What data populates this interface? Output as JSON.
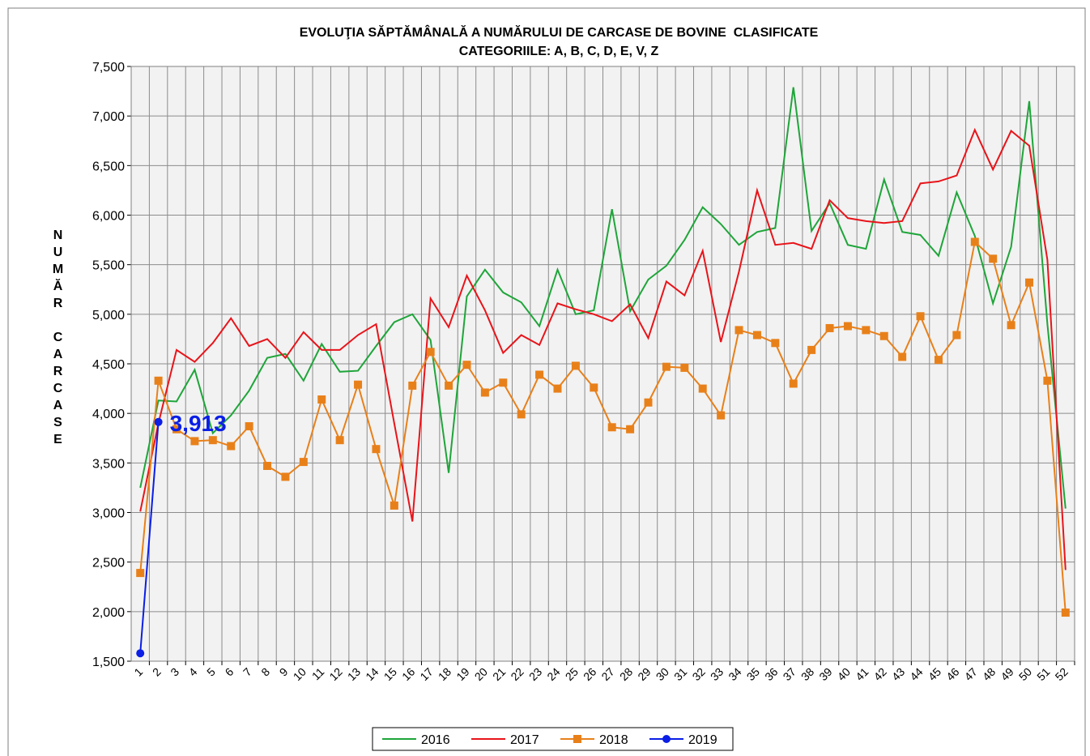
{
  "chart_data": {
    "type": "line",
    "title": "EVOLUŢIA SĂPTĂMÂNALĂ A NUMĂRULUI DE CARCASE DE BOVINE  CLASIFICATE",
    "subtitle": "CATEGORIILE: A, B, C, D, E, V, Z",
    "y_label": "NUMĂR CARCASE",
    "categories": [
      "1",
      "2",
      "3",
      "4",
      "5",
      "6",
      "7",
      "8",
      "9",
      "10",
      "11",
      "12",
      "13",
      "14",
      "15",
      "16",
      "17",
      "18",
      "19",
      "20",
      "21",
      "22",
      "23",
      "24",
      "25",
      "26",
      "27",
      "28",
      "29",
      "30",
      "31",
      "32",
      "33",
      "34",
      "35",
      "36",
      "37",
      "38",
      "39",
      "40",
      "41",
      "42",
      "43",
      "44",
      "45",
      "46",
      "47",
      "48",
      "49",
      "50",
      "51",
      "52"
    ],
    "series": [
      {
        "name": "2016",
        "color": "#1fa53a",
        "marker": "none",
        "values": [
          3250,
          4130,
          4120,
          4440,
          3800,
          3980,
          4230,
          4560,
          4600,
          4330,
          4700,
          4420,
          4430,
          4680,
          4920,
          5000,
          4740,
          3400,
          5180,
          5450,
          5220,
          5120,
          4880,
          5450,
          5000,
          5040,
          6060,
          5030,
          5350,
          5490,
          5750,
          6080,
          5910,
          5700,
          5830,
          5870,
          7290,
          5840,
          6120,
          5700,
          5660,
          6360,
          5830,
          5800,
          5590,
          6230,
          5790,
          5110,
          5680,
          7150,
          4900,
          3040
        ]
      },
      {
        "name": "2017",
        "color": "#e8141a",
        "marker": "none",
        "values": [
          3010,
          3900,
          4640,
          4520,
          4710,
          4960,
          4680,
          4750,
          4560,
          4820,
          4640,
          4640,
          4790,
          4900,
          3900,
          2910,
          5160,
          4870,
          5390,
          5040,
          4610,
          4790,
          4690,
          5110,
          5050,
          5000,
          4930,
          5100,
          4760,
          5330,
          5190,
          5640,
          4720,
          5430,
          6250,
          5700,
          5720,
          5660,
          6150,
          5970,
          5940,
          5920,
          5940,
          6320,
          6340,
          6400,
          6860,
          6460,
          6850,
          6700,
          5550,
          2420
        ]
      },
      {
        "name": "2018",
        "color": "#e8801a",
        "marker": "square",
        "values": [
          2390,
          4330,
          3840,
          3720,
          3730,
          3670,
          3870,
          3470,
          3360,
          3510,
          4140,
          3730,
          4290,
          3640,
          3070,
          4280,
          4620,
          4280,
          4490,
          4210,
          4310,
          3990,
          4390,
          4250,
          4480,
          4260,
          3860,
          3840,
          4110,
          4470,
          4460,
          4250,
          3980,
          4840,
          4790,
          4710,
          4300,
          4640,
          4860,
          4880,
          4840,
          4780,
          4570,
          4980,
          4540,
          4790,
          5730,
          5560,
          4890,
          5320,
          4330,
          1990
        ]
      },
      {
        "name": "2019",
        "color": "#0a1ee6",
        "marker": "circle",
        "values": [
          1580,
          3913,
          null,
          null,
          null,
          null,
          null,
          null,
          null,
          null,
          null,
          null,
          null,
          null,
          null,
          null,
          null,
          null,
          null,
          null,
          null,
          null,
          null,
          null,
          null,
          null,
          null,
          null,
          null,
          null,
          null,
          null,
          null,
          null,
          null,
          null,
          null,
          null,
          null,
          null,
          null,
          null,
          null,
          null,
          null,
          null,
          null,
          null,
          null,
          null,
          null,
          null
        ],
        "value_labels": [
          null,
          "3,913",
          null,
          null,
          null,
          null,
          null,
          null,
          null,
          null,
          null,
          null,
          null,
          null,
          null,
          null,
          null,
          null,
          null,
          null,
          null,
          null,
          null,
          null,
          null,
          null,
          null,
          null,
          null,
          null,
          null,
          null,
          null,
          null,
          null,
          null,
          null,
          null,
          null,
          null,
          null,
          null,
          null,
          null,
          null,
          null,
          null,
          null,
          null,
          null,
          null,
          null
        ]
      }
    ],
    "ylim": [
      1500,
      7500
    ],
    "yticks": [
      {
        "value": 1500,
        "label": "1,500"
      },
      {
        "value": 2000,
        "label": "2,000"
      },
      {
        "value": 2500,
        "label": "2,500"
      },
      {
        "value": 3000,
        "label": "3,000"
      },
      {
        "value": 3500,
        "label": "3,500"
      },
      {
        "value": 4000,
        "label": "4,000"
      },
      {
        "value": 4500,
        "label": "4,500"
      },
      {
        "value": 5000,
        "label": "5,000"
      },
      {
        "value": 5500,
        "label": "5,500"
      },
      {
        "value": 6000,
        "label": "6,000"
      },
      {
        "value": 6500,
        "label": "6,500"
      },
      {
        "value": 7000,
        "label": "7,000"
      },
      {
        "value": 7500,
        "label": "7,500"
      }
    ],
    "grid": true,
    "legend": "bottom"
  }
}
